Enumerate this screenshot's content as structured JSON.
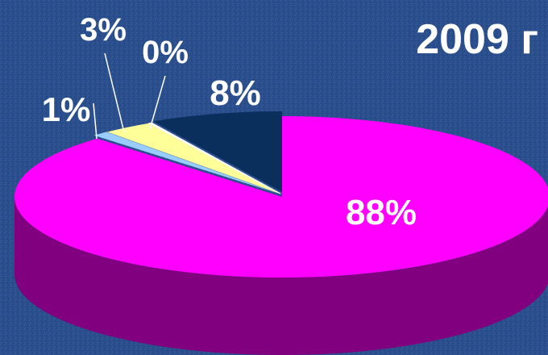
{
  "chart_data": {
    "type": "pie",
    "title": "2009 г",
    "slices": [
      {
        "label": "88%",
        "value": 88,
        "color": "#ff00ff",
        "side_color": "#800080"
      },
      {
        "label": "1%",
        "value": 1,
        "color": "#99ccff",
        "side_color": "#5b7fa8"
      },
      {
        "label": "3%",
        "value": 3,
        "color": "#ffff99",
        "side_color": "#b8b860"
      },
      {
        "label": "0%",
        "value": 0,
        "color": "#ffffff",
        "side_color": "#bbbbbb"
      },
      {
        "label": "8%",
        "value": 8,
        "color": "#0b2f5c",
        "side_color": "#06203f"
      }
    ],
    "exploded_slices": [
      "1%",
      "3%",
      "0%",
      "8%"
    ],
    "legend": "none"
  }
}
